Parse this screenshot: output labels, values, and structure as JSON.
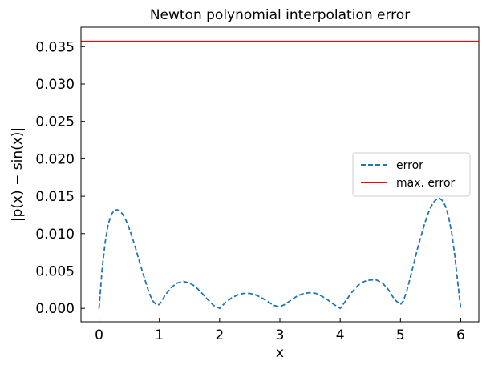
{
  "chart_data": {
    "type": "line",
    "title": "Newton polynomial interpolation error",
    "xlabel": "x",
    "ylabel": "|p(x) − sin(x)|",
    "xlim": [
      -0.3,
      6.3
    ],
    "ylim": [
      -0.0018,
      0.0376
    ],
    "xticks": [
      0,
      1,
      2,
      3,
      4,
      5,
      6
    ],
    "xtick_labels": [
      "0",
      "1",
      "2",
      "3",
      "4",
      "5",
      "6"
    ],
    "yticks": [
      0.0,
      0.005,
      0.01,
      0.015,
      0.02,
      0.025,
      0.03,
      0.035
    ],
    "ytick_labels": [
      "0.000",
      "0.005",
      "0.010",
      "0.015",
      "0.020",
      "0.025",
      "0.030",
      "0.035"
    ],
    "grid": false,
    "legend_position": "center-right",
    "series": [
      {
        "name": "error",
        "color": "#1f77b4",
        "style": "dashed",
        "x": [
          0,
          0.05,
          0.1,
          0.15,
          0.2,
          0.25,
          0.3,
          0.35,
          0.4,
          0.45,
          0.5,
          0.55,
          0.6,
          0.65,
          0.7,
          0.75,
          0.8,
          0.85,
          0.9,
          0.95,
          1.0,
          1.1,
          1.2,
          1.3,
          1.4,
          1.5,
          1.6,
          1.7,
          1.8,
          1.9,
          2.0,
          2.1,
          2.2,
          2.3,
          2.4,
          2.5,
          2.6,
          2.7,
          2.8,
          2.9,
          3.0,
          3.1,
          3.2,
          3.3,
          3.4,
          3.5,
          3.6,
          3.7,
          3.8,
          3.9,
          4.0,
          4.1,
          4.2,
          4.3,
          4.4,
          4.5,
          4.6,
          4.7,
          4.8,
          4.9,
          5.0,
          5.05,
          5.1,
          5.15,
          5.2,
          5.25,
          5.3,
          5.35,
          5.4,
          5.45,
          5.5,
          5.55,
          5.6,
          5.65,
          5.7,
          5.75,
          5.8,
          5.85,
          5.9,
          5.95,
          6.0
        ],
        "y": [
          0.0,
          0.0052,
          0.0088,
          0.0112,
          0.0125,
          0.0131,
          0.0132,
          0.013,
          0.0125,
          0.0117,
          0.0107,
          0.0095,
          0.0082,
          0.0068,
          0.0054,
          0.0041,
          0.0028,
          0.0017,
          0.0009,
          0.0005,
          0.0005,
          0.0018,
          0.0028,
          0.0034,
          0.0036,
          0.0034,
          0.0029,
          0.0021,
          0.0012,
          0.0004,
          0.0,
          0.0008,
          0.0014,
          0.0018,
          0.002,
          0.002,
          0.0018,
          0.0014,
          0.0009,
          0.0004,
          0.0002,
          0.0006,
          0.0012,
          0.0017,
          0.002,
          0.0021,
          0.002,
          0.0016,
          0.0011,
          0.0005,
          0.0,
          0.0011,
          0.0022,
          0.0031,
          0.0036,
          0.0038,
          0.0038,
          0.0034,
          0.0025,
          0.0012,
          0.0005,
          0.001,
          0.0022,
          0.0037,
          0.0053,
          0.0069,
          0.0085,
          0.0099,
          0.0113,
          0.0125,
          0.0135,
          0.0142,
          0.0146,
          0.0147,
          0.0144,
          0.0136,
          0.0122,
          0.0101,
          0.0072,
          0.0035,
          0.0
        ]
      },
      {
        "name": "max. error",
        "color": "#ff0000",
        "style": "solid",
        "y_constant": 0.0357
      }
    ]
  }
}
